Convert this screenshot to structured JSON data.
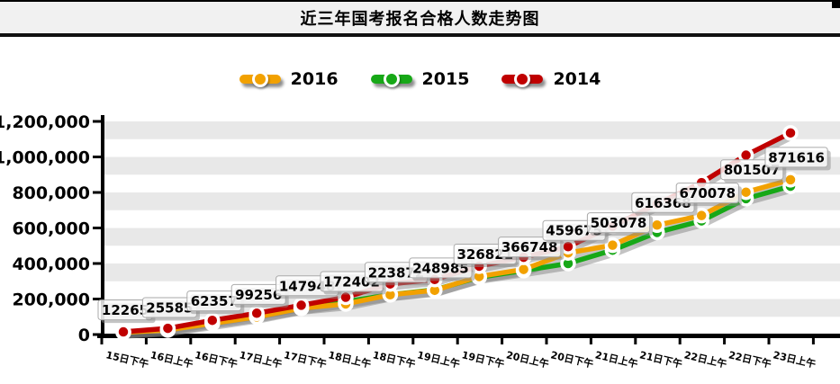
{
  "header": {
    "title": "近三年国考报名合格人数走势图"
  },
  "chart_data": {
    "type": "line",
    "title": "近三年国考报名合格人数走势图",
    "categories": [
      "15日下午",
      "16日上午",
      "16日下午",
      "17日上午",
      "17日下午",
      "18日上午",
      "18日下午",
      "19日上午",
      "19日下午",
      "20日上午",
      "20日下午",
      "21日上午",
      "21日下午",
      "22日上午",
      "22日下午",
      "23日上午"
    ],
    "series": [
      {
        "name": "2016",
        "color": "#F2A100",
        "values": [
          12265,
          25585,
          62357,
          99256,
          147948,
          172402,
          223872,
          248985,
          326821,
          366748,
          459675,
          503078,
          616368,
          670078,
          801507,
          871616
        ],
        "data_labels": [
          "12265",
          "25585",
          "62357",
          "99256",
          "147948",
          "172402",
          "223872",
          "248985",
          "326821",
          "366748",
          "459675",
          "503078",
          "616368",
          "670078",
          "801507",
          "871616"
        ]
      },
      {
        "name": "2015",
        "color": "#17A817",
        "values": [
          13000,
          27000,
          70000,
          105000,
          150000,
          185000,
          225000,
          252000,
          322000,
          360000,
          400000,
          475000,
          575000,
          640000,
          765000,
          835000
        ]
      },
      {
        "name": "2014",
        "color": "#C00000",
        "values": [
          15000,
          35000,
          80000,
          120000,
          165000,
          210000,
          285000,
          310000,
          385000,
          435000,
          495000,
          610000,
          735000,
          855000,
          1010000,
          1135000
        ]
      }
    ],
    "xlabel": "",
    "ylabel": "",
    "ylim": [
      0,
      1200000
    ],
    "ytick_labels": [
      "0",
      "200,000",
      "400,000",
      "600,000",
      "800,000",
      "1,000,000",
      "1,200,000"
    ],
    "ytick_values": [
      0,
      200000,
      400000,
      600000,
      800000,
      1000000,
      1200000
    ],
    "legend": {
      "position": "top",
      "entries": [
        "2016",
        "2015",
        "2014"
      ]
    },
    "grid": "horizontal-stripes",
    "stripe_interval": 100000,
    "stripe_color": "#E8E8E8"
  }
}
